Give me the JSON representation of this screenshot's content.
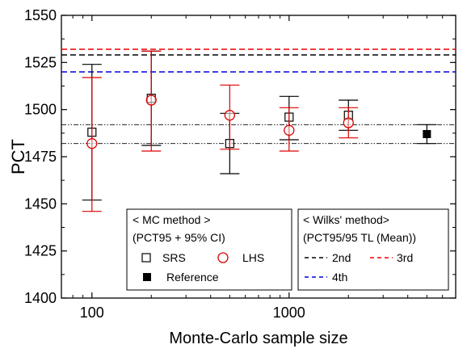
{
  "chart_data": {
    "type": "scatter",
    "xlabel": "Monte-Carlo sample size",
    "ylabel": "PCT",
    "x_scale": "log",
    "xlim": [
      70,
      7000
    ],
    "ylim": [
      1400,
      1550
    ],
    "x_ticks": [
      100,
      1000
    ],
    "x_tick_labels": [
      "100",
      "1000"
    ],
    "y_ticks": [
      1400,
      1425,
      1450,
      1475,
      1500,
      1525,
      1550
    ],
    "y_tick_labels": [
      "1400",
      "1425",
      "1450",
      "1475",
      "1500",
      "1525",
      "1550"
    ],
    "grid": false,
    "series": [
      {
        "name": "SRS",
        "marker": "open-square",
        "color": "#000000",
        "x": [
          100,
          200,
          500,
          1000,
          2000
        ],
        "y": [
          1488,
          1506,
          1482,
          1496,
          1497
        ],
        "ci_low": [
          1452,
          1481,
          1466,
          1484,
          1489
        ],
        "ci_high": [
          1524,
          1531,
          1498,
          1507,
          1505
        ]
      },
      {
        "name": "LHS",
        "marker": "open-circle",
        "color": "#dd0000",
        "x": [
          100,
          200,
          500,
          1000,
          2000
        ],
        "y": [
          1482,
          1505,
          1497,
          1489,
          1493
        ],
        "ci_low": [
          1446,
          1478,
          1479,
          1478,
          1485
        ],
        "ci_high": [
          1517,
          1531,
          1513,
          1501,
          1501
        ]
      },
      {
        "name": "Reference",
        "marker": "filled-square",
        "color": "#000000",
        "x": [
          5000
        ],
        "y": [
          1487
        ],
        "ci_low": [
          1482
        ],
        "ci_high": [
          1492
        ]
      }
    ],
    "reference_band": {
      "y": [
        1482,
        1492
      ],
      "color": "#000000",
      "style": "dash-dot-dot"
    },
    "wilks_lines": [
      {
        "name": "2nd",
        "y": 1529,
        "color": "#000000"
      },
      {
        "name": "3rd",
        "y": 1532,
        "color": "#ee0000"
      },
      {
        "name": "4th",
        "y": 1520,
        "color": "#0000dd"
      }
    ],
    "legends": [
      {
        "placement": "bottom-center",
        "title": "< MC method >",
        "subtitle": "(PCT95 + 95% CI)",
        "entries": [
          "SRS",
          "LHS",
          "Reference"
        ]
      },
      {
        "placement": "bottom-right",
        "title": "< Wilks' method>",
        "subtitle": "(PCT95/95 TL (Mean))",
        "entries": [
          "2nd",
          "3rd",
          "4th"
        ]
      }
    ]
  }
}
